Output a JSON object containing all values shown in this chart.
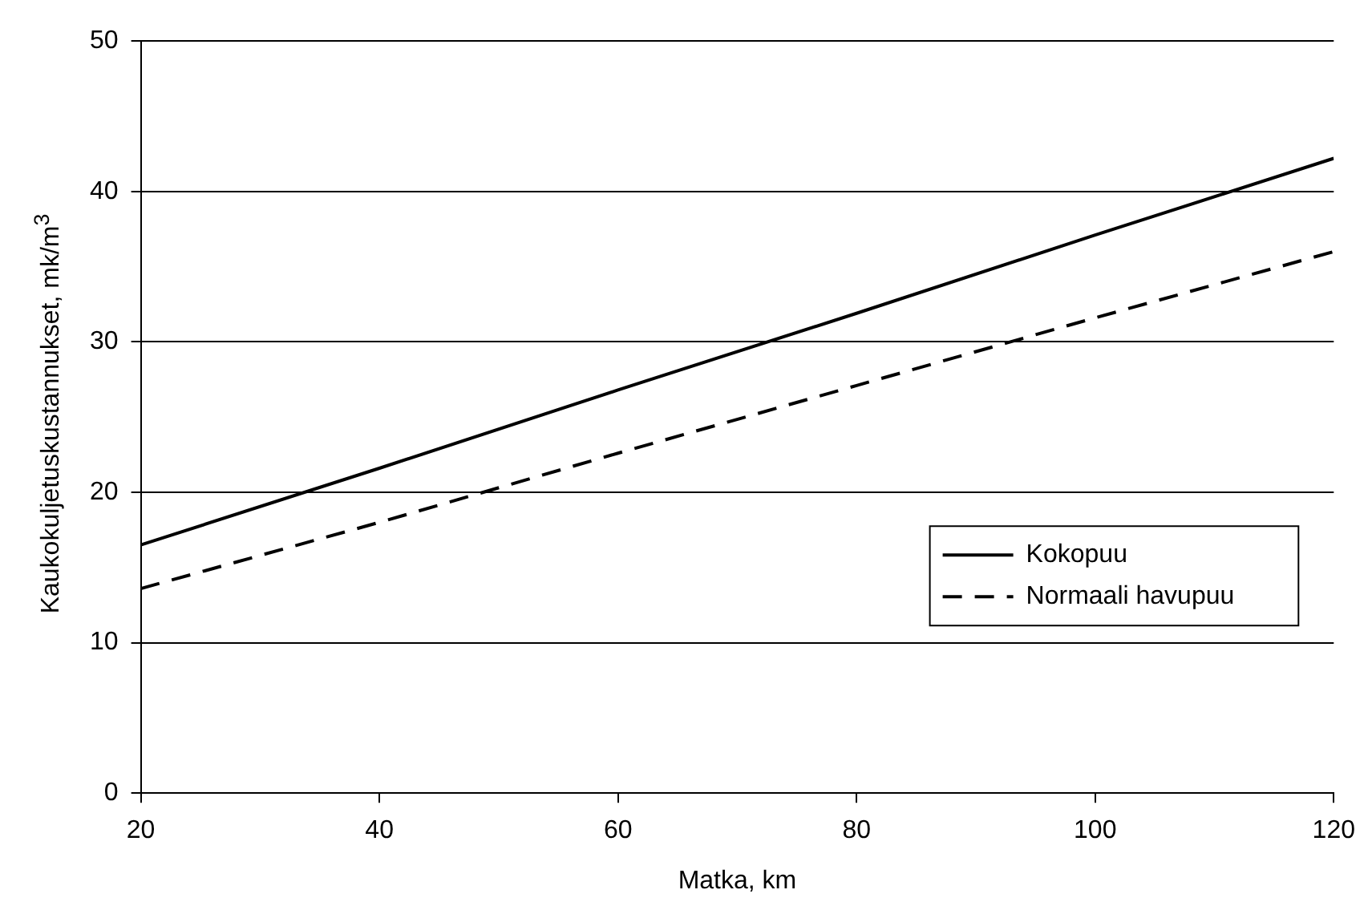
{
  "chart_data": {
    "type": "line",
    "xlabel": "Matka, km",
    "ylabel": "Kaukokuljetuskustannukset, mk/m$^{3}$",
    "x": [
      20,
      40,
      60,
      80,
      100,
      120
    ],
    "series": [
      {
        "name": "Kokopuu",
        "color": "#000000",
        "line_style": "solid",
        "values": [
          16.5,
          21.6,
          26.8,
          31.9,
          37.1,
          42.2
        ]
      },
      {
        "name": "Normaali havupuu",
        "color": "#000000",
        "line_style": "dashed",
        "values": [
          13.6,
          18.0,
          22.6,
          27.1,
          31.6,
          36.0
        ]
      }
    ],
    "xlim": [
      20,
      120
    ],
    "xticks": [
      20,
      40,
      60,
      80,
      100,
      120
    ],
    "ylim": [
      0,
      50
    ],
    "yticks": [
      0,
      10,
      20,
      30,
      40,
      50
    ],
    "grid": "y",
    "legend": "bottom right",
    "marker": "none"
  }
}
